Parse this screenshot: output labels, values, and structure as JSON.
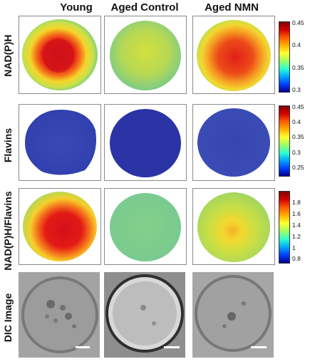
{
  "columns": [
    "Young",
    "Aged Control",
    "Aged NMN"
  ],
  "rows": [
    "NAD(P)H",
    "Flavins",
    "NAD(P)H/Flavins",
    "DIC Image"
  ],
  "colorbars": [
    {
      "ticks": [
        "0.45",
        "0.4",
        "0.35",
        "0.3"
      ],
      "values": [
        0.45,
        0.4,
        0.35,
        0.3
      ],
      "min": 0.3,
      "max": 0.45
    },
    {
      "ticks": [
        "0.45",
        "0.4",
        "0.35",
        "0.3",
        "0.25"
      ],
      "values": [
        0.45,
        0.4,
        0.35,
        0.3,
        0.25
      ],
      "min": 0.22,
      "max": 0.46
    },
    {
      "ticks": [
        "1.8",
        "1.6",
        "1.4",
        "1.2",
        "1",
        "0.8"
      ],
      "values": [
        1.8,
        1.6,
        1.4,
        1.2,
        1.0,
        0.8
      ],
      "min": 0.7,
      "max": 1.95
    }
  ],
  "colormap": "jet",
  "panels": {
    "nadph": {
      "young": "hot-center-red",
      "aged_control": "uniform-yellow-green",
      "aged_nmn": "orange-red-center"
    },
    "flavins": {
      "young": "uniform-blue",
      "aged_control": "uniform-dark-blue",
      "aged_nmn": "uniform-blue"
    },
    "ratio": {
      "young": "red-center",
      "aged_control": "uniform-green",
      "aged_nmn": "yellow-green"
    },
    "dic": {
      "young": "grayscale-oocyte",
      "aged_control": "grayscale-oocyte",
      "aged_nmn": "grayscale-oocyte"
    }
  },
  "scale_bar": "white"
}
